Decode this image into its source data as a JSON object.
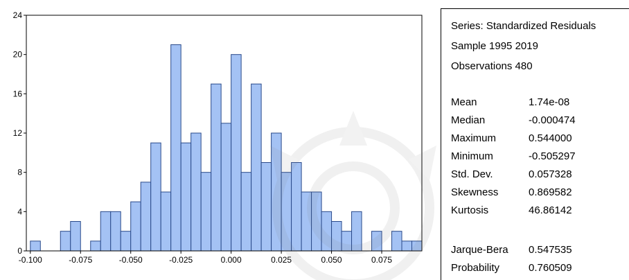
{
  "chart_data": {
    "type": "bar",
    "subtype": "histogram",
    "bin_width": 0.005,
    "x": [
      -0.1,
      -0.085,
      -0.08,
      -0.07,
      -0.065,
      -0.06,
      -0.055,
      -0.05,
      -0.045,
      -0.04,
      -0.035,
      -0.03,
      -0.025,
      -0.02,
      -0.015,
      -0.01,
      -0.005,
      0.0,
      0.005,
      0.01,
      0.015,
      0.02,
      0.025,
      0.03,
      0.035,
      0.04,
      0.045,
      0.05,
      0.055,
      0.06,
      0.07,
      0.08,
      0.085,
      0.09
    ],
    "values": [
      1,
      2,
      3,
      1,
      4,
      4,
      2,
      5,
      7,
      11,
      6,
      21,
      11,
      12,
      8,
      17,
      13,
      20,
      8,
      17,
      9,
      12,
      8,
      9,
      6,
      6,
      4,
      3,
      2,
      4,
      2,
      2,
      1,
      1
    ],
    "xlim": [
      -0.102,
      0.095
    ],
    "ylim": [
      0,
      24
    ],
    "xticks": [
      "-0.100",
      "-0.075",
      "-0.050",
      "-0.025",
      "0.000",
      "0.025",
      "0.050",
      "0.075"
    ],
    "xtick_values": [
      -0.1,
      -0.075,
      -0.05,
      -0.025,
      0.0,
      0.025,
      0.05,
      0.075
    ],
    "yticks": [
      "0",
      "4",
      "8",
      "12",
      "16",
      "20",
      "24"
    ],
    "ytick_values": [
      0,
      4,
      8,
      12,
      16,
      20,
      24
    ],
    "grid": false,
    "bar_color": "#a4c2f4",
    "bar_edge_color": "#2a4a8a",
    "title": "",
    "xlabel": "",
    "ylabel": ""
  },
  "stats": {
    "header_lines": [
      "Series: Standardized Residuals",
      "Sample 1995 2019",
      "Observations 480"
    ],
    "rows": [
      {
        "name": "Mean",
        "value": "1.74e-08"
      },
      {
        "name": "Median",
        "value": "-0.000474"
      },
      {
        "name": "Maximum",
        "value": "0.544000"
      },
      {
        "name": "Minimum",
        "value": "-0.505297"
      },
      {
        "name": "Std. Dev.",
        "value": "0.057328"
      },
      {
        "name": "Skewness",
        "value": "0.869582"
      },
      {
        "name": "Kurtosis",
        "value": "46.86142"
      }
    ],
    "test_rows": [
      {
        "name": "Jarque-Bera",
        "value": "0.547535"
      },
      {
        "name": "Probability",
        "value": "0.760509"
      }
    ]
  }
}
